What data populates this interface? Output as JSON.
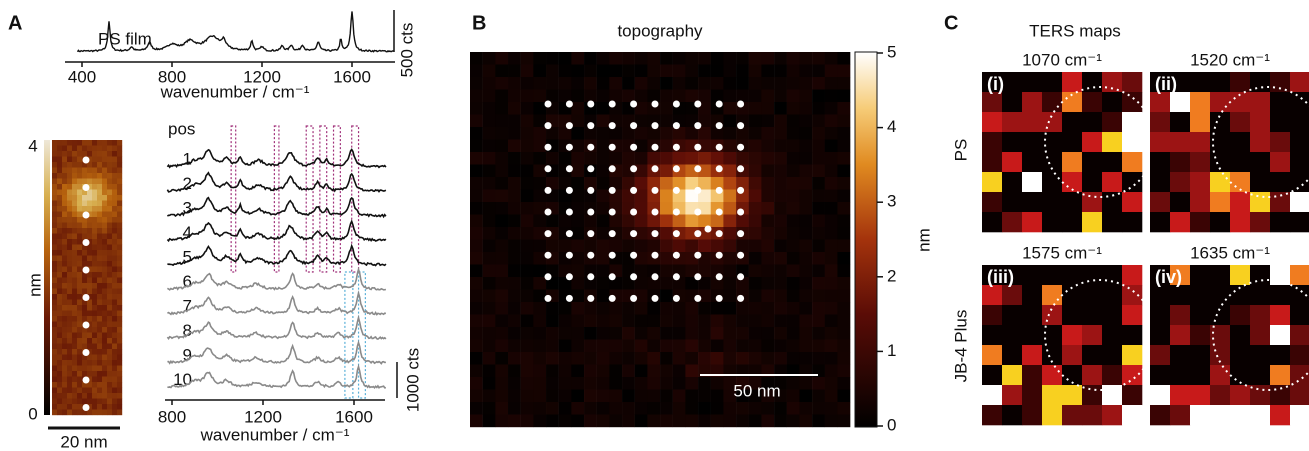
{
  "panel_a": {
    "label": "A",
    "top_plot": {
      "title": "PS film",
      "scale_label": "500 cts",
      "x_label": "wavenumber / cm⁻¹",
      "xticks": [
        400,
        800,
        1200,
        1600
      ]
    },
    "image": {
      "colorbar_ticks": [
        0,
        4
      ],
      "colorbar_unit": "nm",
      "scale_bar": "20 nm"
    },
    "spectra": {
      "header": "pos",
      "positions": [
        "1",
        "2",
        "3",
        "4",
        "5",
        "6",
        "7",
        "8",
        "9",
        "10"
      ],
      "x_label": "wavenumber / cm⁻¹",
      "xticks": [
        800,
        1200,
        1600
      ],
      "scale_label": "1000 cts"
    }
  },
  "panel_b": {
    "label": "B",
    "title": "topography",
    "colorbar_unit": "nm",
    "colorbar_ticks": [
      0,
      1,
      2,
      3,
      4,
      5
    ],
    "scale_bar": "50 nm"
  },
  "panel_c": {
    "label": "C",
    "title": "TERS maps",
    "row_labels": [
      "PS",
      "JB-4 Plus"
    ],
    "maps": [
      {
        "tag": "(i)",
        "title": "1070 cm⁻¹"
      },
      {
        "tag": "(ii)",
        "title": "1520 cm⁻¹"
      },
      {
        "tag": "(iii)",
        "title": "1575 cm⁻¹"
      },
      {
        "tag": "(iv)",
        "title": "1635 cm⁻¹"
      }
    ]
  }
}
